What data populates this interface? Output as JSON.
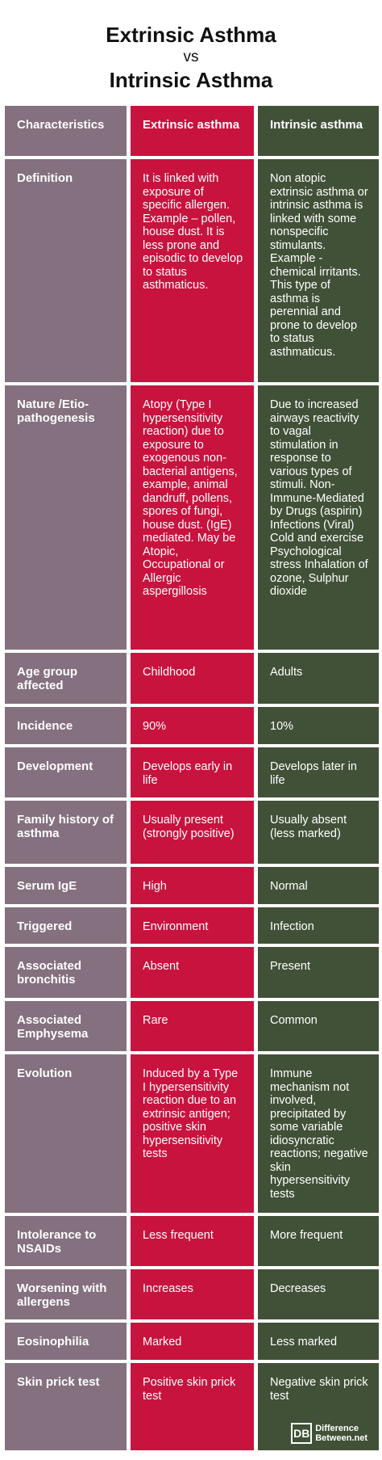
{
  "title": {
    "line1": "Extrinsic Asthma",
    "vs": "vs",
    "line2": "Intrinsic Asthma"
  },
  "columns": [
    "Characteristics",
    "Extrinsic asthma",
    "Intrinsic asthma"
  ],
  "rows": [
    {
      "label": "Definition",
      "extrinsic": "It is linked with exposure of specific allergen. Example – pollen, house dust. It is less prone and episodic to develop to status asthmaticus.",
      "intrinsic": "Non atopic extrinsic asthma or intrinsic asthma is linked with some nonspecific stimulants. Example - chemical irritants. This type of asthma is perennial and prone to develop to status asthmaticus."
    },
    {
      "label": "Nature /Etio-pathogenesis",
      "extrinsic": "Atopy (Type I hypersensitivity reaction) due to exposure to exogenous non-bacterial antigens, example, animal dandruff, pollens, spores of fungi, house dust. (IgE) mediated. May be Atopic, Occupational or Allergic aspergillosis",
      "intrinsic": "Due to increased airways reactivity to vagal stimulation in response to various types of stimuli. Non-Immune-Mediated by Drugs (aspirin) Infections (Viral) Cold and exercise Psychological stress Inhalation of ozone, Sulphur dioxide"
    },
    {
      "label": "Age group affected",
      "extrinsic": "Childhood",
      "intrinsic": "Adults"
    },
    {
      "label": "Incidence",
      "extrinsic": "90%",
      "intrinsic": "10%"
    },
    {
      "label": "Development",
      "extrinsic": "Develops early in life",
      "intrinsic": "Develops later in life"
    },
    {
      "label": "Family history of asthma",
      "extrinsic": "Usually present (strongly positive)",
      "intrinsic": "Usually absent (less marked)"
    },
    {
      "label": "Serum IgE",
      "extrinsic": "High",
      "intrinsic": "Normal"
    },
    {
      "label": "Triggered",
      "extrinsic": "Environment",
      "intrinsic": "Infection"
    },
    {
      "label": "Associated bronchitis",
      "extrinsic": "Absent",
      "intrinsic": "Present"
    },
    {
      "label": "Associated Emphysema",
      "extrinsic": "Rare",
      "intrinsic": "Common"
    },
    {
      "label": "Evolution",
      "extrinsic": "Induced by a Type I hypersensitivity reaction due to an extrinsic antigen; positive skin hypersensitivity tests",
      "intrinsic": "Immune mechanism not involved, precipitated by some variable idiosyncratic reactions; negative skin hypersensitivity tests"
    },
    {
      "label": "Intolerance to NSAIDs",
      "extrinsic": "Less frequent",
      "intrinsic": "More frequent"
    },
    {
      "label": "Worsening with allergens",
      "extrinsic": "Increases",
      "intrinsic": "Decreases"
    },
    {
      "label": "Eosinophilia",
      "extrinsic": "Marked",
      "intrinsic": "Less marked"
    },
    {
      "label": "Skin prick test",
      "extrinsic": "Positive skin prick test",
      "intrinsic": "Negative skin prick test"
    }
  ],
  "logo": {
    "mark": "DB",
    "line1": "Difference",
    "line2": "Between.net"
  },
  "colors": {
    "characteristics": "#84707f",
    "extrinsic": "#c8133e",
    "intrinsic": "#415138"
  }
}
